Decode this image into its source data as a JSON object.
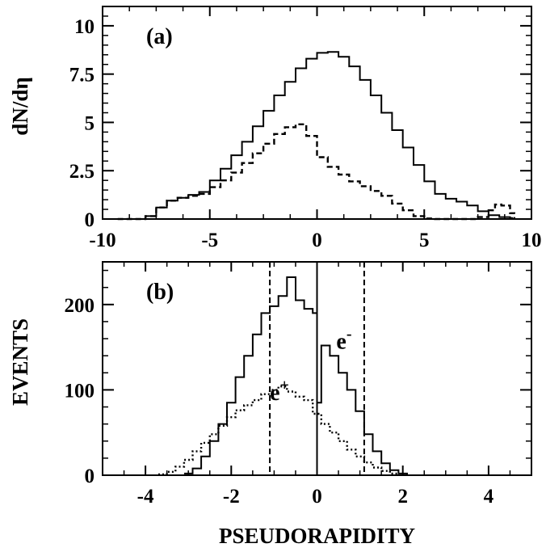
{
  "chart_data": [
    {
      "type": "line",
      "panel_label": "(a)",
      "xlabel": "",
      "ylabel": "dN/dη",
      "xlim": [
        -10,
        10
      ],
      "ylim": [
        0,
        11
      ],
      "xticks": [
        -10,
        -5,
        0,
        5,
        10
      ],
      "xtick_labels": [
        "-10",
        "-5",
        "0",
        "5",
        "10"
      ],
      "yticks": [
        0,
        2.5,
        5,
        7.5,
        10
      ],
      "ytick_labels": [
        "0",
        "2.5",
        "5",
        "7.5",
        "10"
      ],
      "grid": false,
      "series": [
        {
          "style": "solid",
          "x": [
            -9.3,
            -8.5,
            -8.0,
            -7.5,
            -7.0,
            -6.5,
            -6.0,
            -5.5,
            -5.0,
            -4.5,
            -4.0,
            -3.5,
            -3.0,
            -2.5,
            -2.0,
            -1.5,
            -1.0,
            -0.5,
            0.0,
            0.5,
            1.0,
            1.5,
            2.0,
            2.5,
            3.0,
            3.5,
            4.0,
            4.5,
            5.0,
            5.5,
            6.0,
            6.5,
            7.0,
            7.5,
            8.0,
            8.5,
            9.0,
            9.1
          ],
          "y": [
            0,
            0,
            0.15,
            0.6,
            0.95,
            1.1,
            1.25,
            1.4,
            2.0,
            2.6,
            3.3,
            4.0,
            4.8,
            5.6,
            6.4,
            7.1,
            7.8,
            8.3,
            8.6,
            8.65,
            8.4,
            7.9,
            7.2,
            6.4,
            5.5,
            4.6,
            3.7,
            2.8,
            1.95,
            1.3,
            1.05,
            0.9,
            0.7,
            0.4,
            0.2,
            0.1,
            0.05,
            0
          ]
        },
        {
          "style": "dashed",
          "x": [
            -9.3,
            -8.5,
            -8.0,
            -7.5,
            -7.0,
            -6.5,
            -6.0,
            -5.5,
            -5.0,
            -4.5,
            -4.0,
            -3.5,
            -3.0,
            -2.5,
            -2.0,
            -1.5,
            -1.0,
            -0.5,
            0.0,
            0.5,
            1.0,
            1.5,
            2.0,
            2.5,
            3.0,
            3.5,
            4.0,
            4.5,
            5.0,
            5.5,
            6.0,
            6.5,
            7.0,
            7.5,
            8.0,
            8.3,
            8.6,
            9.0,
            9.2
          ],
          "y": [
            0,
            0,
            0.15,
            0.6,
            0.95,
            1.1,
            1.2,
            1.3,
            1.65,
            2.0,
            2.4,
            2.9,
            3.4,
            3.9,
            4.4,
            4.75,
            4.9,
            4.3,
            3.2,
            2.7,
            2.3,
            1.95,
            1.7,
            1.45,
            1.2,
            0.8,
            0.45,
            0.15,
            0.03,
            0,
            0,
            0,
            0,
            0.1,
            0.45,
            0.75,
            0.7,
            0.3,
            0
          ]
        }
      ]
    },
    {
      "type": "line",
      "panel_label": "(b)",
      "xlabel": "PSEUDORAPIDITY",
      "ylabel": "EVENTS",
      "xlim": [
        -5,
        5
      ],
      "ylim": [
        0,
        250
      ],
      "xticks": [
        -4,
        -2,
        0,
        2,
        4
      ],
      "xtick_labels": [
        "-4",
        "-2",
        "0",
        "2",
        "4"
      ],
      "yticks": [
        0,
        100,
        200
      ],
      "ytick_labels": [
        "0",
        "100",
        "200"
      ],
      "grid": false,
      "vlines": [
        {
          "x": -1.1,
          "style": "dashed"
        },
        {
          "x": 0.0,
          "style": "solid"
        },
        {
          "x": 1.1,
          "style": "dashed"
        }
      ],
      "annotations": [
        {
          "base": "e",
          "sup": "-",
          "x": 0.45,
          "y": 148
        },
        {
          "base": "e",
          "sup": "+",
          "x": -1.1,
          "y": 88
        }
      ],
      "series": [
        {
          "name": "e-",
          "style": "solid",
          "x": [
            -3.1,
            -2.9,
            -2.7,
            -2.5,
            -2.3,
            -2.1,
            -1.9,
            -1.7,
            -1.5,
            -1.3,
            -1.1,
            -0.9,
            -0.7,
            -0.5,
            -0.3,
            -0.1,
            0.0,
            0.1,
            0.3,
            0.5,
            0.7,
            0.9,
            1.1,
            1.3,
            1.5,
            1.7,
            1.9,
            2.1
          ],
          "y": [
            2,
            8,
            22,
            40,
            60,
            85,
            115,
            140,
            165,
            190,
            198,
            210,
            232,
            205,
            195,
            190,
            85,
            152,
            140,
            120,
            100,
            75,
            48,
            28,
            14,
            6,
            2,
            0
          ]
        },
        {
          "name": "e+",
          "style": "dotted",
          "x": [
            -3.7,
            -3.5,
            -3.3,
            -3.1,
            -2.9,
            -2.7,
            -2.5,
            -2.3,
            -2.1,
            -1.9,
            -1.7,
            -1.5,
            -1.3,
            -1.1,
            -0.9,
            -0.7,
            -0.5,
            -0.3,
            -0.1,
            0.1,
            0.3,
            0.5,
            0.7,
            0.9,
            1.1,
            1.3,
            1.5,
            1.7,
            1.9
          ],
          "y": [
            1,
            4,
            10,
            18,
            28,
            38,
            48,
            58,
            68,
            76,
            82,
            88,
            95,
            100,
            104,
            98,
            92,
            88,
            72,
            60,
            50,
            40,
            30,
            22,
            15,
            9,
            5,
            2,
            0
          ]
        }
      ]
    }
  ]
}
